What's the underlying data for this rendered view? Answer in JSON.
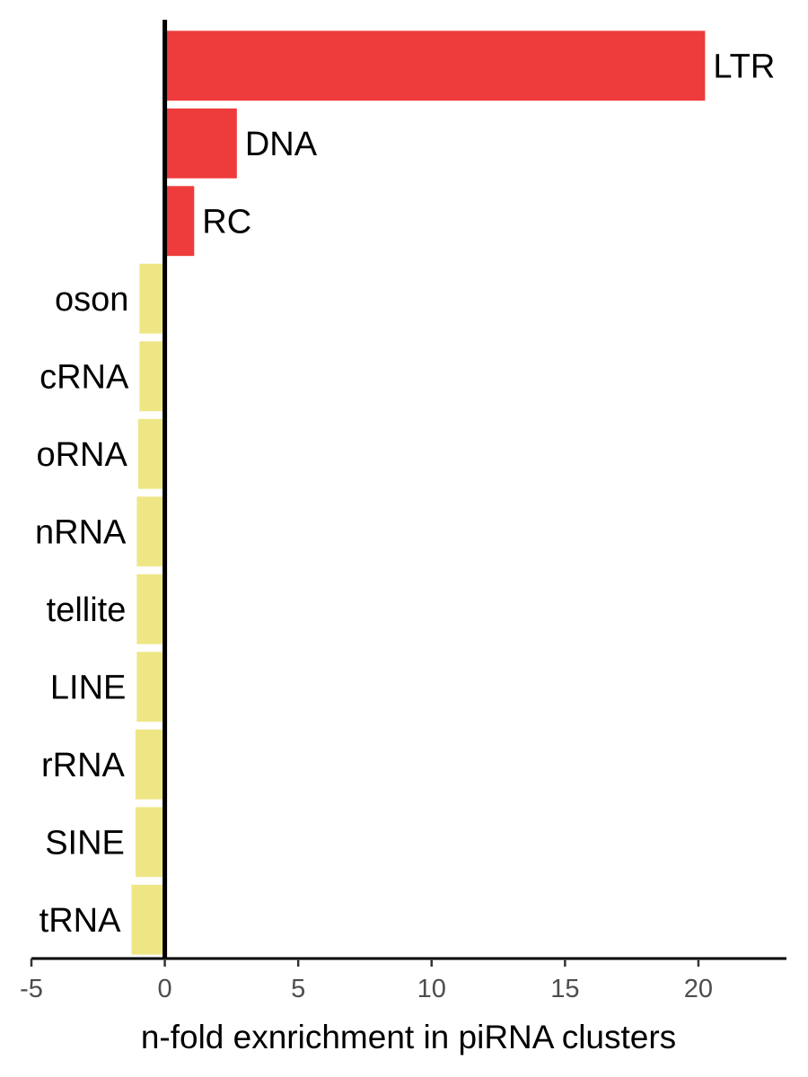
{
  "chart_data": {
    "type": "bar",
    "orientation": "horizontal",
    "categories": [
      "LTR",
      "DNA",
      "RC",
      "oson",
      "cRNA",
      "oRNA",
      "nRNA",
      "tellite",
      "LINE",
      "rRNA",
      "SINE",
      "tRNA"
    ],
    "values": [
      20.25,
      2.7,
      1.1,
      -0.95,
      -0.95,
      -1.0,
      -1.05,
      -1.05,
      -1.05,
      -1.1,
      -1.1,
      -1.25
    ],
    "xlabel": "n-fold exnrichment in piRNA clusters",
    "ylabel": "",
    "xlim": [
      -5,
      23.3
    ],
    "xticks": [
      -5,
      0,
      5,
      10,
      15,
      20
    ],
    "xtick_labels": [
      "-5",
      "0",
      "5",
      "10",
      "15",
      "20"
    ],
    "grid": false,
    "legend": "none",
    "colors": {
      "positive": "#ee3b3b",
      "negative": "#eee685",
      "axis": "#000000",
      "tick_text": "#4d4d4d"
    }
  }
}
